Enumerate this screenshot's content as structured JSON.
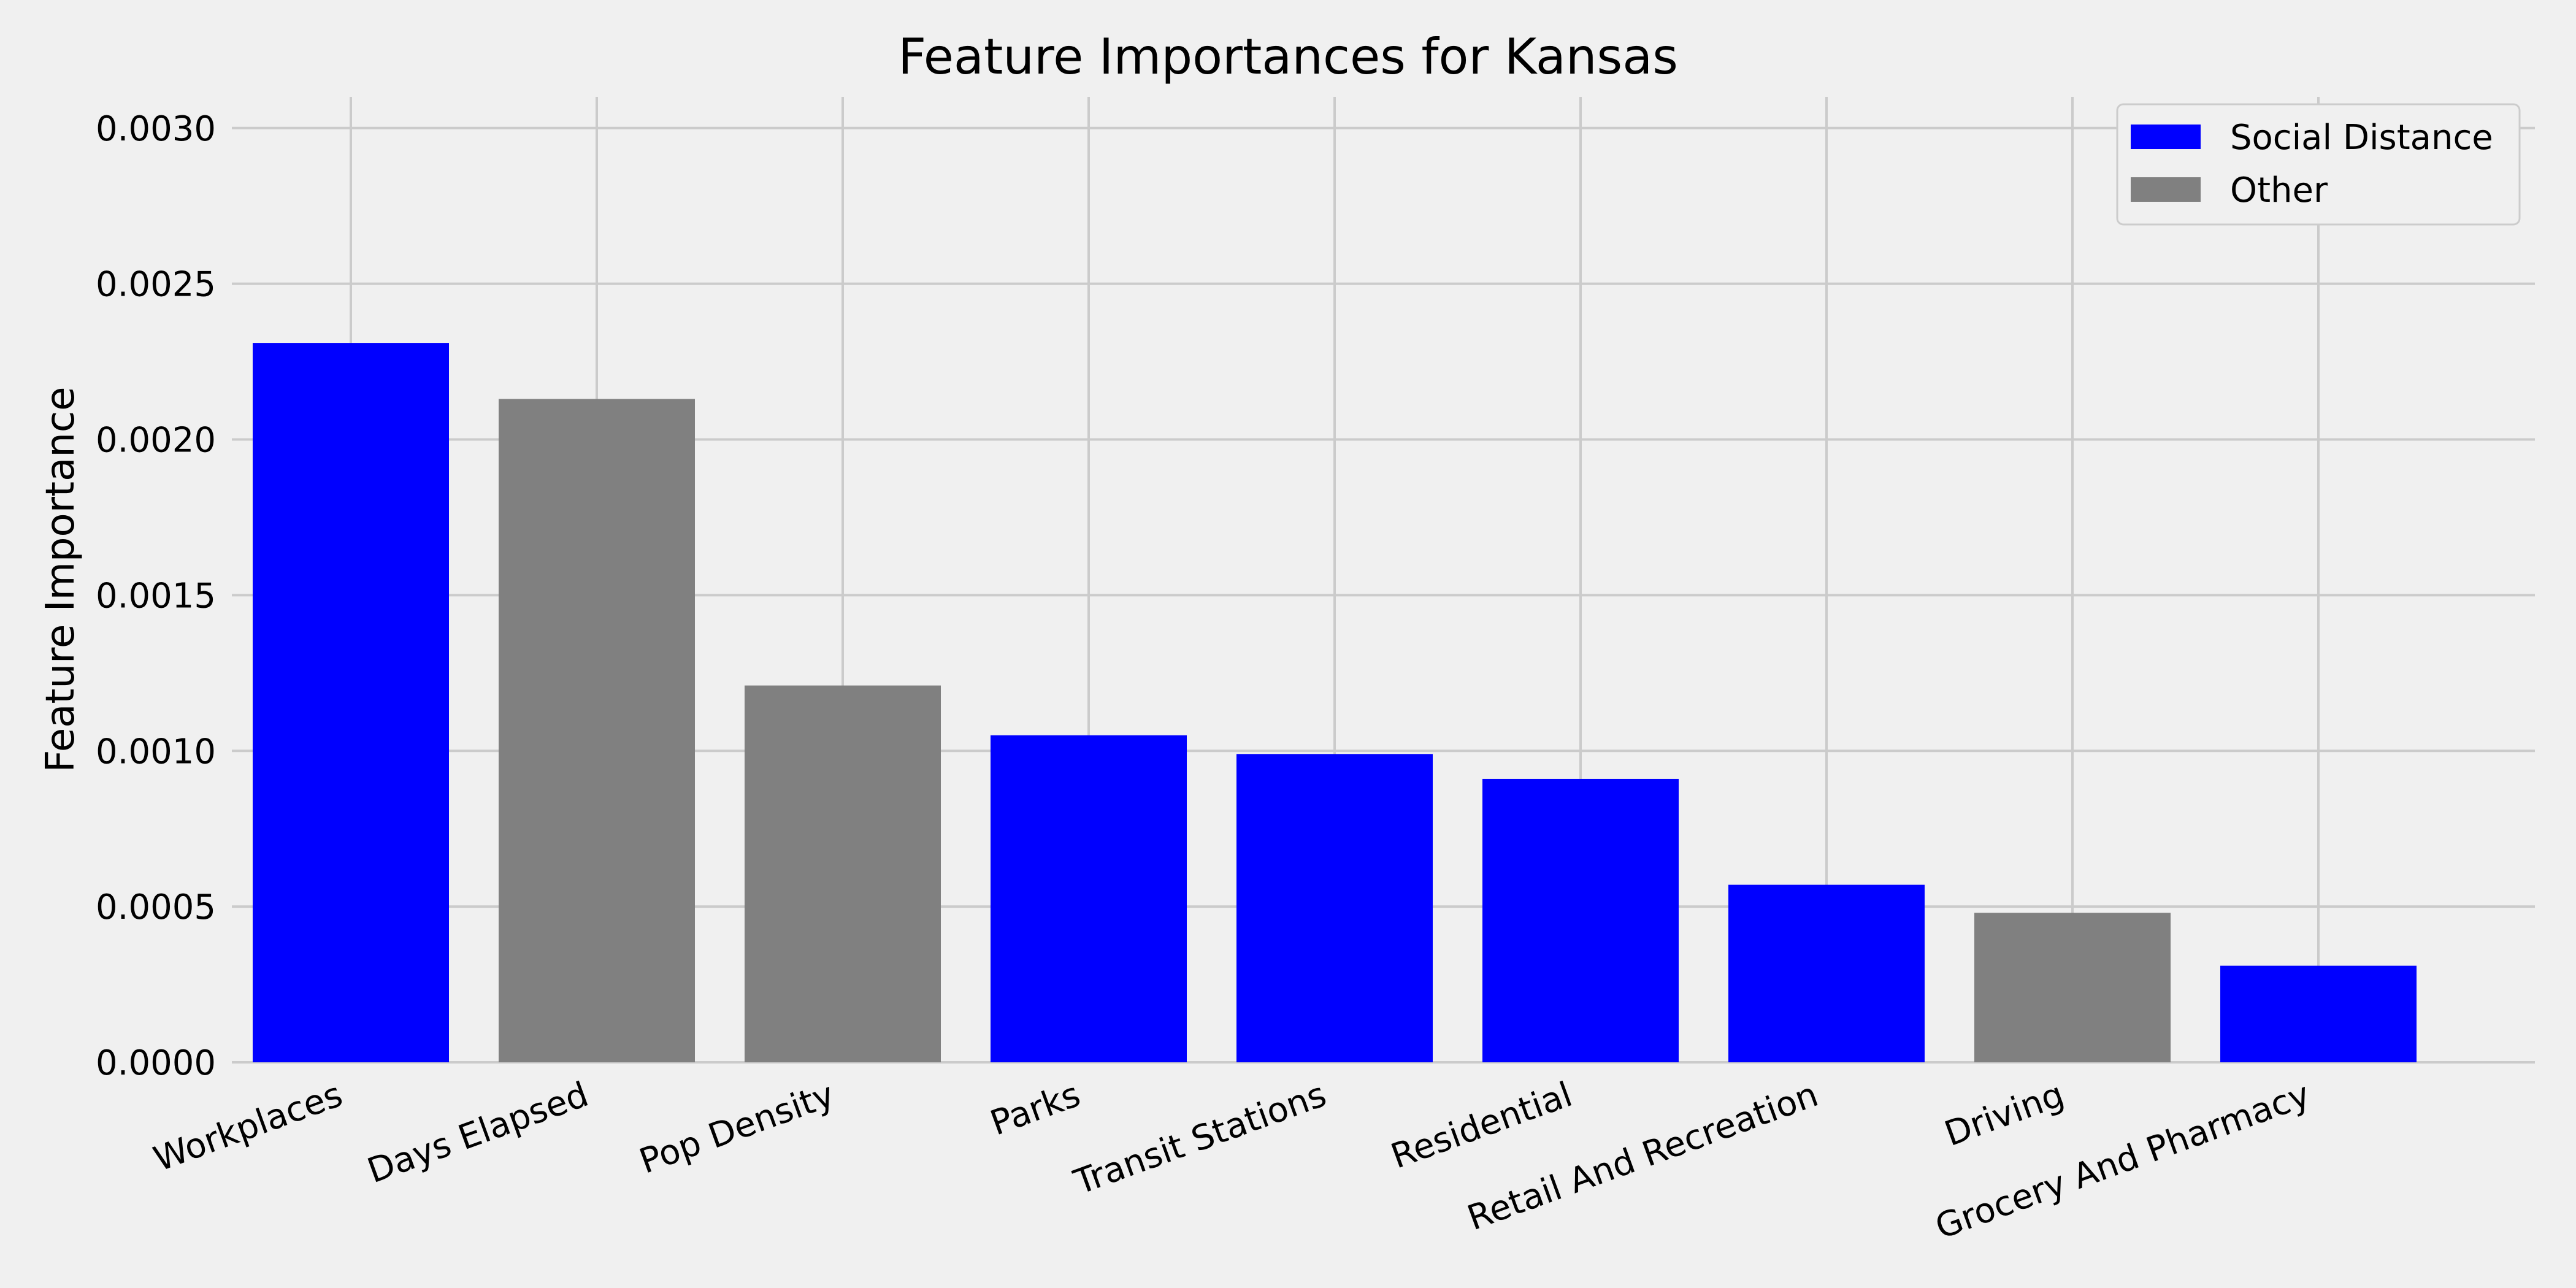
{
  "chart_data": {
    "type": "bar",
    "title": "Feature Importances for Kansas",
    "xlabel": "",
    "ylabel": "Feature Importance",
    "categories": [
      "Workplaces",
      "Days Elapsed",
      "Pop Density",
      "Parks",
      "Transit Stations",
      "Residential",
      "Retail And Recreation",
      "Driving",
      "Grocery And Pharmacy"
    ],
    "values": [
      0.00231,
      0.00213,
      0.00121,
      0.00105,
      0.00099,
      0.00091,
      0.00057,
      0.00048,
      0.00031
    ],
    "groups": [
      "Social Distance",
      "Other",
      "Other",
      "Social Distance",
      "Social Distance",
      "Social Distance",
      "Social Distance",
      "Other",
      "Social Distance"
    ],
    "ylim": [
      0,
      0.0031
    ],
    "yticks": [
      "0.0000",
      "0.0005",
      "0.0010",
      "0.0015",
      "0.0020",
      "0.0025",
      "0.0030"
    ],
    "ytick_values": [
      0,
      0.0005,
      0.001,
      0.0015,
      0.002,
      0.0025,
      0.003
    ],
    "grid": true,
    "legend": {
      "position": "top-right",
      "entries": [
        {
          "label": "Social Distance",
          "color": "#0000ff"
        },
        {
          "label": "Other",
          "color": "#808080"
        }
      ]
    },
    "colors": {
      "Social Distance": "#0000ff",
      "Other": "#808080",
      "background": "#f0f0f0",
      "grid": "#cbcbcb"
    }
  }
}
